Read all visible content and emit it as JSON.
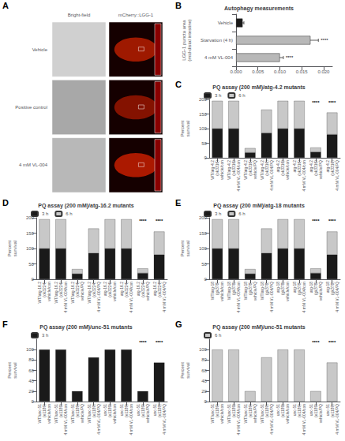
{
  "chart_data": [
    {
      "type": "image",
      "categories": [
        "Vehicle",
        "Positive control",
        "4 mM VL-004"
      ],
      "x": [
        "Bright-field",
        "mCherry::LGG-1"
      ],
      "annotations": [
        {
          "text": "A"
        }
      ]
    },
    {
      "type": "bar",
      "orientation": "horizontal",
      "title": "Autophagy measurements",
      "categories": [
        "4 mM VL-004",
        "Starvation (4 h)",
        "Vehicle"
      ],
      "values": [
        0.01,
        0.017,
        0.0015
      ],
      "errors": [
        0.0008,
        0.0018,
        0.0003
      ],
      "colors": [
        "#b8b8b8",
        "#b8b8b8",
        "#1a1a1a"
      ],
      "ylabel": "LGG-1 puncta area\n(mid-distal intestine)",
      "xlim": [
        0,
        0.022
      ],
      "xticks": [
        {
          "value": 0,
          "label": "0.000"
        },
        0.005,
        {
          "value": 0.01,
          "label": "0.010"
        },
        0.015,
        {
          "value": 0.02,
          "label": "0.020"
        }
      ],
      "annotations": [
        {
          "text": "B"
        },
        {
          "text": "****",
          "category": "4 mM VL-004"
        },
        {
          "text": "****",
          "category": "Starvation (4 h)"
        }
      ],
      "grid": false
    },
    {
      "type": "bar",
      "title": "PQ assay (200 mM)/atg-4.2 mutants",
      "categories": [
        "WT/atg-4.2\n(ok3316)\nvehicle/con",
        "WT/atg-4.2\n(ok3316)\n4 mM VL-004/con",
        "WT/atg-4.2\n(ok3316)\nvehicle/PQ",
        "WT/atg-4.2\n(ok3316)\n4 mM VL-004/PQ",
        "atg-4.2\n(ok3316)\nvehicle/con",
        "atg-4.2\n(ok3316)\n4 mM VL-004/con",
        "atg-4.2\n(ok3316)\nvehicle/PQ",
        "atg-4.2\n(ok3316)\n4 mM VL-004/PQ"
      ],
      "series": [
        {
          "name": "3 h",
          "color": "#1a1a1a",
          "values": [
            100,
            100,
            18,
            85,
            100,
            100,
            20,
            80
          ]
        },
        {
          "name": "6 h",
          "color": "#c8c8c8",
          "values": [
            95,
            95,
            15,
            80,
            95,
            95,
            15,
            75
          ]
        }
      ],
      "stacked": true,
      "legend": "upper left",
      "ylabel": "Percent\nsurvival",
      "ylim": [
        0,
        200
      ],
      "yticks": [
        0,
        50,
        100,
        150,
        200
      ],
      "annotations": [
        {
          "text": "C"
        },
        {
          "text": "****",
          "category": "atg-4.2\n(ok3316)\nvehicle/PQ"
        },
        {
          "text": "****",
          "category": "atg-4.2\n(ok3316)\n4 mM VL-004/PQ"
        }
      ],
      "grid": false
    },
    {
      "type": "bar",
      "title": "PQ assay (200 mM)/atg-16.2 mutants",
      "categories": [
        "WT/atg-16.2\n(ok3224)\nvehicle/con",
        "WT/atg-16.2\n(ok3224)\n4 mM VL-004/con",
        "WT/atg-16.2\n(ok3224)\nvehicle/PQ",
        "WT/atg-16.2\n(ok3224)\n4 mM VL-004/PQ",
        "atg-16.2\n(ok3224)\nvehicle/con",
        "atg-16.2\n(ok3224)\n4 mM VL-004/con",
        "atg-16.2\n(ok3224)\nvehicle/PQ",
        "atg-16.2\n(ok3224)\n4 mM VL-004/PQ"
      ],
      "series": [
        {
          "name": "3 h",
          "color": "#1a1a1a",
          "values": [
            100,
            100,
            18,
            85,
            100,
            100,
            20,
            80
          ]
        },
        {
          "name": "6 h",
          "color": "#c8c8c8",
          "values": [
            95,
            95,
            15,
            80,
            95,
            95,
            15,
            75
          ]
        }
      ],
      "stacked": true,
      "legend": "upper left",
      "ylabel": "Percent\nsurvival",
      "ylim": [
        0,
        200
      ],
      "yticks": [
        0,
        50,
        100,
        150,
        200
      ],
      "annotations": [
        {
          "text": "D"
        },
        {
          "text": "****",
          "category": "atg-16.2\n(ok3224)\nvehicle/PQ"
        },
        {
          "text": "****",
          "category": "atg-16.2\n(ok3224)\n4 mM VL-004/PQ"
        }
      ],
      "grid": false
    },
    {
      "type": "bar",
      "title": "PQ assay (200 mM)/atg-18 mutants",
      "categories": [
        "WT/atg-18\n(gk378)\nvehicle/con",
        "WT/atg-18\n(gk378)\n4 mM VL-004/con",
        "WT/atg-18\n(gk378)\nvehicle/PQ",
        "WT/atg-18\n(gk378)\n4 mM VL-004/PQ",
        "atg-18\n(gk378)\nvehicle/con",
        "atg-18\n(gk378)\n4 mM VL-004/con",
        "atg-18\n(gk378)\nvehicle/PQ",
        "atg-18\n(gk378)\n4 mM VL-004/PQ"
      ],
      "series": [
        {
          "name": "3 h",
          "color": "#1a1a1a",
          "values": [
            100,
            100,
            18,
            85,
            100,
            100,
            20,
            80
          ]
        },
        {
          "name": "6 h",
          "color": "#c8c8c8",
          "values": [
            95,
            95,
            15,
            80,
            95,
            95,
            15,
            75
          ]
        }
      ],
      "stacked": true,
      "legend": "upper left",
      "ylabel": "Percent\nsurvival",
      "ylim": [
        0,
        200
      ],
      "yticks": [
        0,
        50,
        100,
        150,
        200
      ],
      "annotations": [
        {
          "text": "E"
        },
        {
          "text": "****",
          "category": "atg-18\n(gk378)\nvehicle/PQ"
        },
        {
          "text": "****",
          "category": "atg-18\n(gk378)\n4 mM VL-004/PQ"
        }
      ],
      "grid": false
    },
    {
      "type": "bar",
      "title": "PQ assay (200 mM)/unc-51 mutants",
      "categories": [
        "WT/unc-51\n(e1189)\nvehicle/con",
        "WT/unc-51\n(e1189)\n4 mM VL-004/con",
        "WT/unc-51\n(e1189)\nvehicle/PQ",
        "WT/unc-51\n(e1189)\n4 mM VL-004/PQ",
        "unc-51\n(e1189)\nvehicle/con",
        "unc-51\n(e1189)\n4 mM VL-004/con",
        "unc-51\n(e1189)\nvehicle/PQ",
        "unc-51\n(e1189)\n4 mM VL-004/PQ"
      ],
      "series": [
        {
          "name": "3 h",
          "color": "#1a1a1a",
          "values": [
            100,
            100,
            20,
            85,
            100,
            100,
            20,
            75
          ]
        }
      ],
      "legend": "upper left",
      "ylabel": "Percent\nsurvival",
      "ylim": [
        0,
        120
      ],
      "yticks": [
        0,
        20,
        40,
        60,
        80,
        100
      ],
      "annotations": [
        {
          "text": "F"
        },
        {
          "text": "****",
          "category": "unc-51\n(e1189)\nvehicle/PQ"
        },
        {
          "text": "****",
          "category": "unc-51\n(e1189)\n4 mM VL-004/PQ"
        }
      ],
      "grid": false
    },
    {
      "type": "bar",
      "title": "PQ assay (200 mM)/unc-51 mutants",
      "categories": [
        "WT/unc-51\n(e1189)\nvehicle/con",
        "WT/unc-51\n(e1189)\n4 mM VL-004/con",
        "WT/unc-51\n(e1189)\nvehicle/PQ",
        "WT/unc-51\n(e1189)\n4 mM VL-004/PQ",
        "unc-51\n(e1189)\nvehicle/con",
        "unc-51\n(e1189)\n4 mM VL-004/con",
        "unc-51\n(e1189)\nvehicle/PQ",
        "unc-51\n(e1189)\n4 mM VL-004/PQ"
      ],
      "series": [
        {
          "name": "6 h",
          "color": "#c8c8c8",
          "values": [
            100,
            100,
            20,
            85,
            100,
            100,
            20,
            75
          ]
        }
      ],
      "legend": "upper left",
      "ylabel": "Percent\nsurvival",
      "ylim": [
        0,
        120
      ],
      "yticks": [
        0,
        20,
        40,
        60,
        80,
        100
      ],
      "annotations": [
        {
          "text": "G"
        },
        {
          "text": "****",
          "category": "unc-51\n(e1189)\nvehicle/PQ"
        },
        {
          "text": "****",
          "category": "unc-51\n(e1189)\n4 mM VL-004/PQ"
        }
      ],
      "grid": false
    }
  ]
}
